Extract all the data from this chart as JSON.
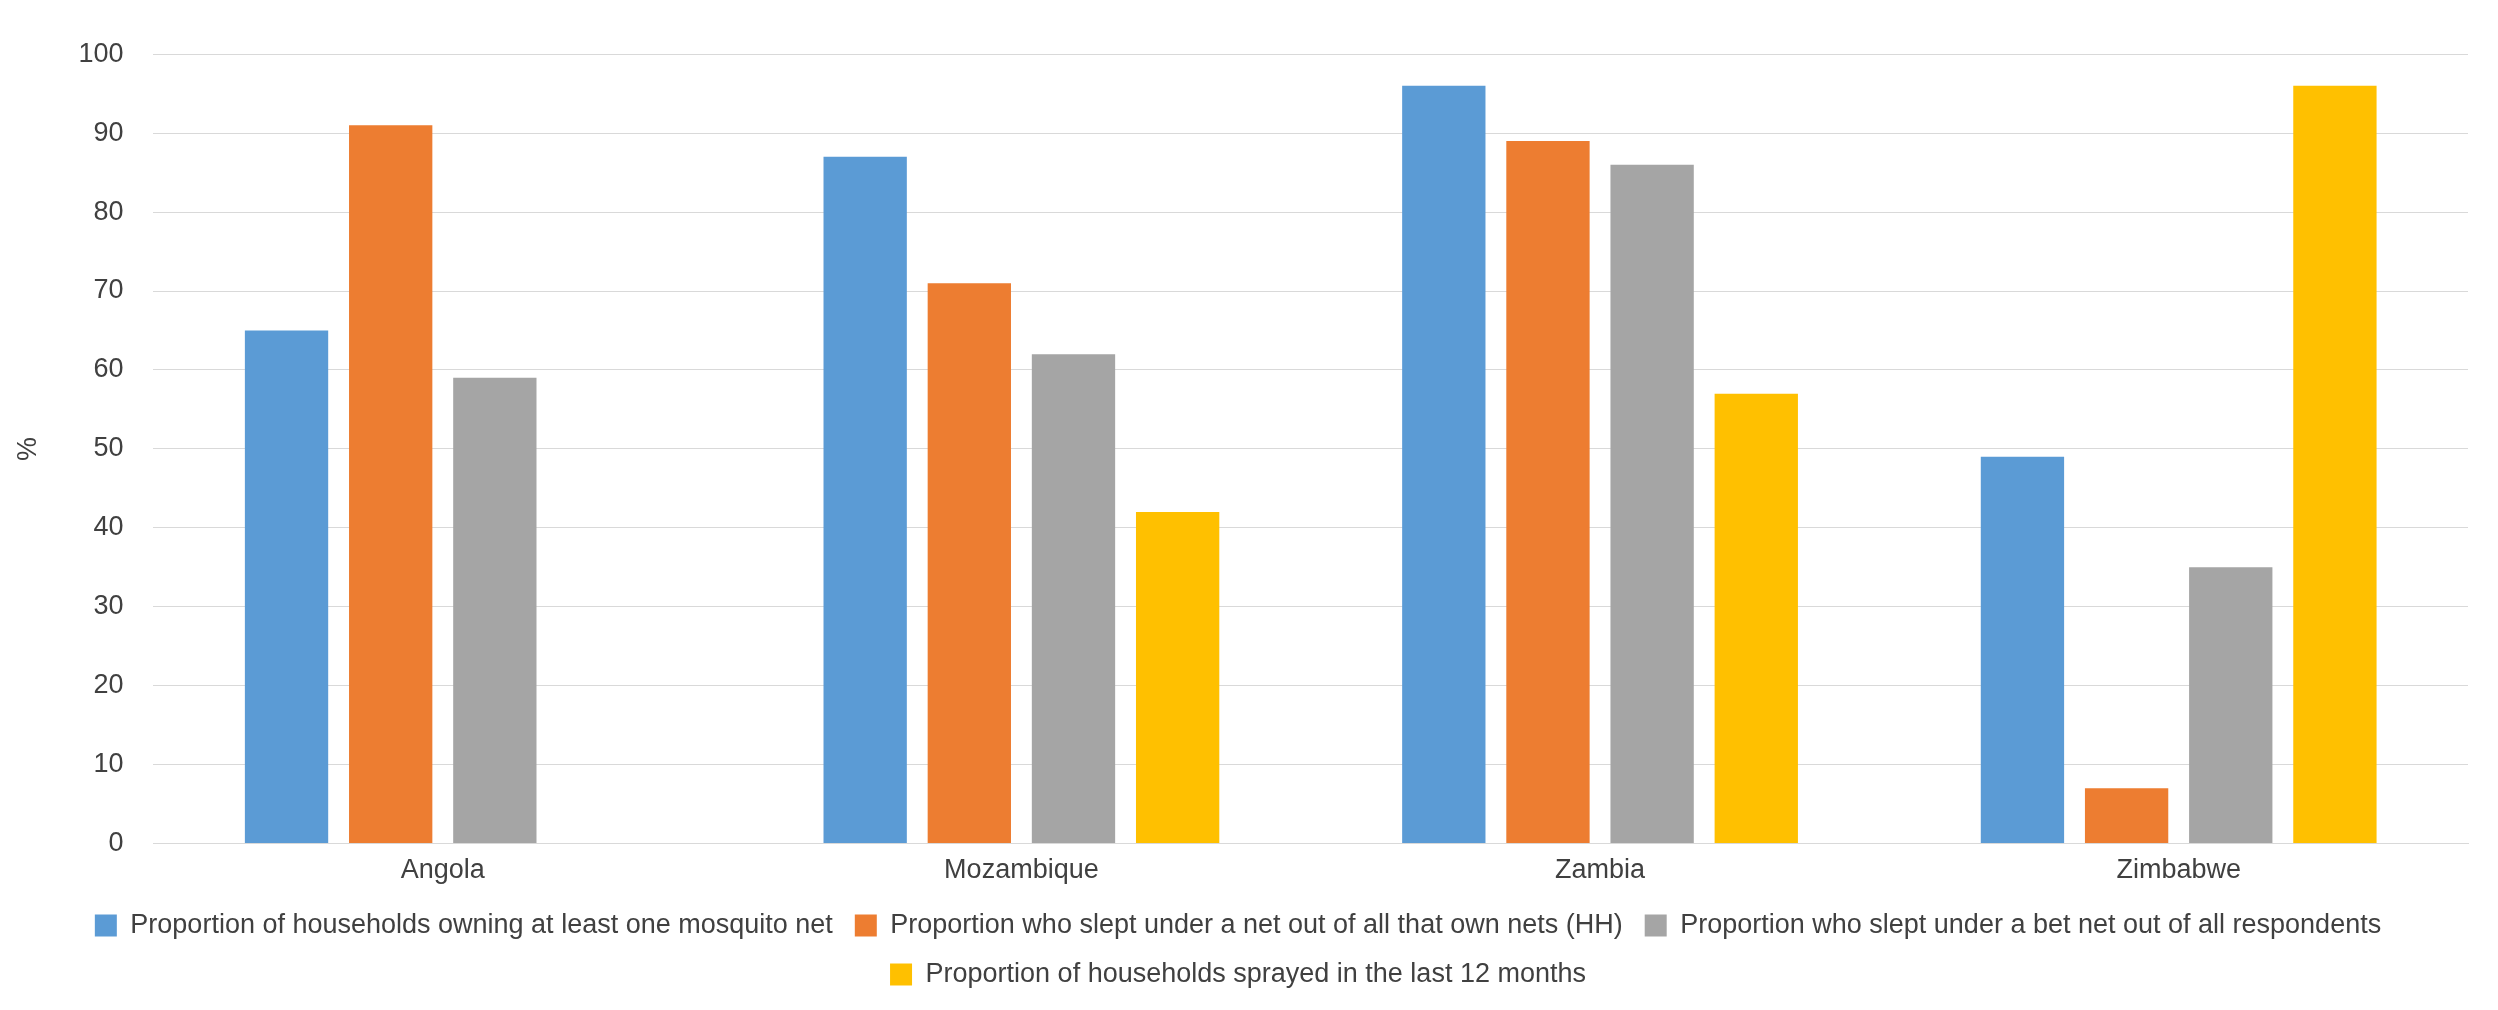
{
  "chart_data": {
    "type": "bar",
    "ylabel": "%",
    "categories": [
      "Angola",
      "Mozambique",
      "Zambia",
      "Zimbabwe"
    ],
    "series": [
      {
        "name": "Proportion of households owning at least one mosquito net",
        "color": "#5b9bd5",
        "values": [
          65,
          87,
          96,
          49
        ]
      },
      {
        "name": "Proportion who slept under a net out of all that own nets (HH)",
        "color": "#ed7d31",
        "values": [
          91,
          71,
          89,
          7
        ]
      },
      {
        "name": "Proportion who slept under a bet net out of all respondents",
        "color": "#a5a5a5",
        "values": [
          59,
          62,
          86,
          35
        ]
      },
      {
        "name": "Proportion of households sprayed in the last 12 months",
        "color": "#ffc000",
        "values": [
          null,
          42,
          57,
          96
        ]
      }
    ],
    "ylim": [
      0,
      100
    ],
    "yticks": [
      0,
      10,
      20,
      30,
      40,
      50,
      60,
      70,
      80,
      90,
      100
    ],
    "grid": "y",
    "legend": "bottom"
  }
}
